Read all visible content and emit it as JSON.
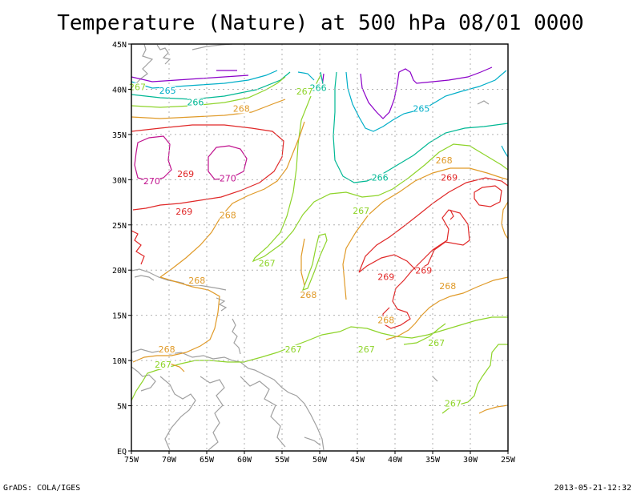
{
  "title": "Temperature (Nature) at 500 hPa 08/01 0000",
  "footer": {
    "left": "GrADS: COLA/IGES",
    "right": "2013-05-21-12:32"
  },
  "map": {
    "lon_range": [
      -75,
      -25
    ],
    "lat_range": [
      0,
      45
    ],
    "x_ticks": [
      "75W",
      "70W",
      "65W",
      "60W",
      "55W",
      "50W",
      "45W",
      "40W",
      "35W",
      "30W",
      "25W"
    ],
    "y_ticks": [
      "EQ",
      "5N",
      "10N",
      "15N",
      "20N",
      "25N",
      "30N",
      "35N",
      "40N",
      "45N"
    ],
    "grid": true
  },
  "colors": {
    "265": "#00aec8",
    "266": "#00b894",
    "267": "#8ed42a",
    "268": "#e09a28",
    "269": "#e02828",
    "270": "#c0128e",
    "cold": "#8b00c8",
    "coast": "#a0a0a0"
  },
  "contour_labels": [
    {
      "text": "265",
      "lon": -70.2,
      "lat": 39.6
    },
    {
      "text": "265",
      "lon": -36.5,
      "lat": 37.6
    },
    {
      "text": "266",
      "lon": -66.5,
      "lat": 38.3
    },
    {
      "text": "266",
      "lon": -50.2,
      "lat": 39.9
    },
    {
      "text": "266",
      "lon": -42.0,
      "lat": 30.0
    },
    {
      "text": "267",
      "lon": -74.2,
      "lat": 40.0
    },
    {
      "text": "267",
      "lon": -52.0,
      "lat": 39.5
    },
    {
      "text": "267",
      "lon": -44.5,
      "lat": 26.3
    },
    {
      "text": "267",
      "lon": -57.0,
      "lat": 20.5
    },
    {
      "text": "267",
      "lon": -53.5,
      "lat": 11.0
    },
    {
      "text": "267",
      "lon": -43.8,
      "lat": 11.0
    },
    {
      "text": "267",
      "lon": -70.8,
      "lat": 9.3
    },
    {
      "text": "267",
      "lon": -34.5,
      "lat": 11.7
    },
    {
      "text": "267",
      "lon": -32.3,
      "lat": 5.0
    },
    {
      "text": "268",
      "lon": -60.4,
      "lat": 37.6
    },
    {
      "text": "268",
      "lon": -33.5,
      "lat": 31.9
    },
    {
      "text": "268",
      "lon": -62.2,
      "lat": 25.8
    },
    {
      "text": "268",
      "lon": -66.3,
      "lat": 18.6
    },
    {
      "text": "268",
      "lon": -51.5,
      "lat": 17.0
    },
    {
      "text": "268",
      "lon": -33.0,
      "lat": 18.0
    },
    {
      "text": "268",
      "lon": -41.2,
      "lat": 14.2
    },
    {
      "text": "268",
      "lon": -70.3,
      "lat": 11.0
    },
    {
      "text": "269",
      "lon": -67.8,
      "lat": 30.4
    },
    {
      "text": "269",
      "lon": -68.0,
      "lat": 26.2
    },
    {
      "text": "269",
      "lon": -32.8,
      "lat": 30.0
    },
    {
      "text": "269",
      "lon": -41.2,
      "lat": 19.0
    },
    {
      "text": "269",
      "lon": -36.2,
      "lat": 19.7
    },
    {
      "text": "270",
      "lon": -72.3,
      "lat": 29.6
    },
    {
      "text": "270",
      "lon": -62.2,
      "lat": 29.9
    }
  ]
}
